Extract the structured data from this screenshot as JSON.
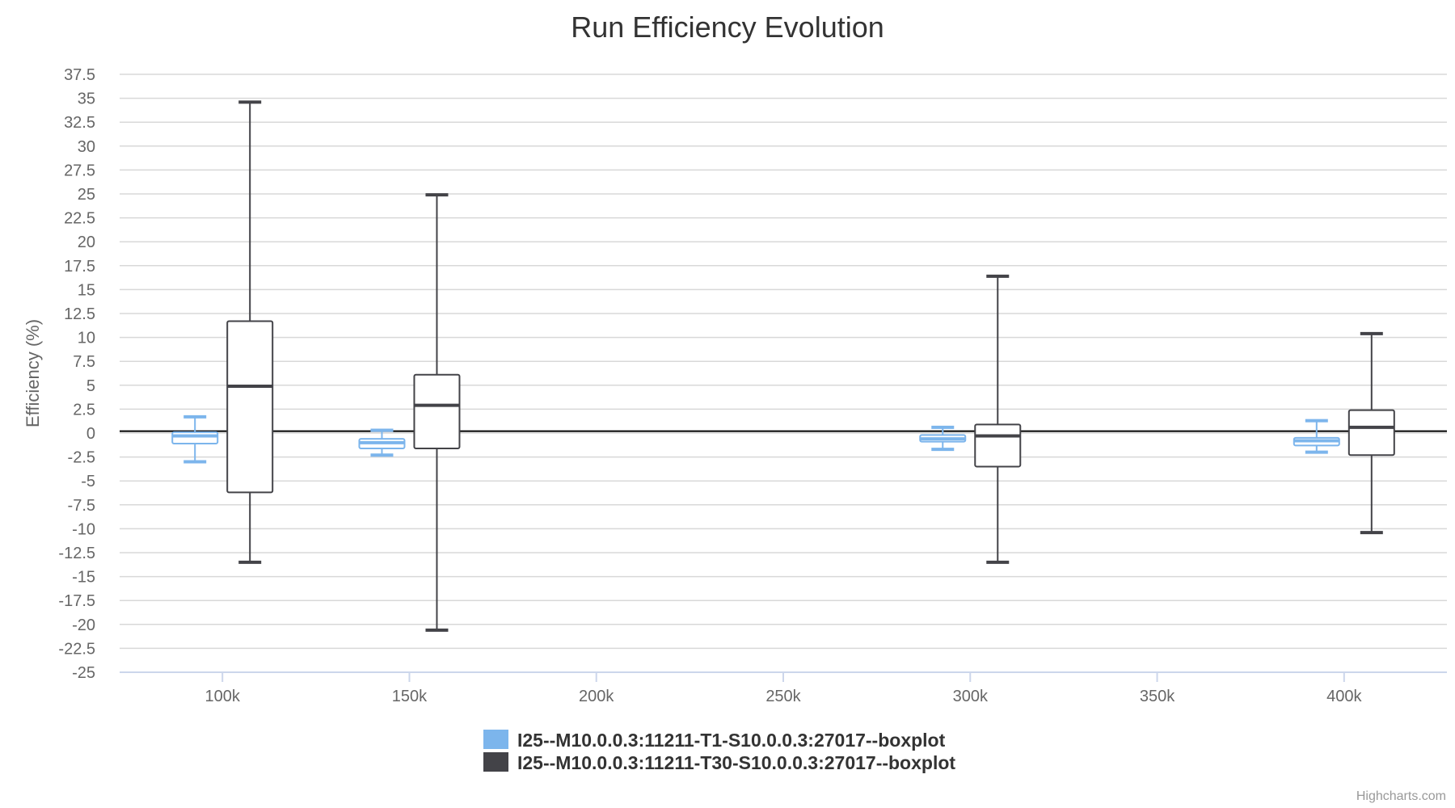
{
  "chart_data": {
    "type": "boxplot",
    "title": "Run Efficiency Evolution",
    "ylabel": "Efficiency (%)",
    "xlabel": "",
    "ylim": [
      -25,
      37.5
    ],
    "ytick_step": 2.5,
    "xlim": [
      72500,
      427500
    ],
    "xticks": [
      100000,
      150000,
      200000,
      250000,
      300000,
      350000,
      400000
    ],
    "xtick_labels": [
      "100k",
      "150k",
      "200k",
      "250k",
      "300k",
      "350k",
      "400k"
    ],
    "plot_line_y": 0.2,
    "legend_position": "bottom-center",
    "series": [
      {
        "name": "I25--M10.0.0.3:11211-T1-S10.0.0.3:27017--boxplot",
        "color": "#7cb5ec",
        "points": [
          {
            "x": 100000,
            "low": -3.0,
            "q1": -1.1,
            "median": -0.3,
            "q3": 0.1,
            "high": 1.7
          },
          {
            "x": 150000,
            "low": -2.3,
            "q1": -1.6,
            "median": -1.0,
            "q3": -0.6,
            "high": 0.3
          },
          {
            "x": 300000,
            "low": -1.7,
            "q1": -0.9,
            "median": -0.6,
            "q3": -0.2,
            "high": 0.6
          },
          {
            "x": 400000,
            "low": -2.0,
            "q1": -1.3,
            "median": -0.8,
            "q3": -0.5,
            "high": 1.3
          }
        ]
      },
      {
        "name": "I25--M10.0.0.3:11211-T30-S10.0.0.3:27017--boxplot",
        "color": "#434348",
        "points": [
          {
            "x": 100000,
            "low": -13.5,
            "q1": -6.2,
            "median": 4.9,
            "q3": 11.7,
            "high": 34.6
          },
          {
            "x": 150000,
            "low": -20.6,
            "q1": -1.6,
            "median": 2.9,
            "q3": 6.1,
            "high": 24.9
          },
          {
            "x": 300000,
            "low": -13.5,
            "q1": -3.5,
            "median": -0.3,
            "q3": 0.9,
            "high": 16.4
          },
          {
            "x": 400000,
            "low": -10.4,
            "q1": -2.3,
            "median": 0.6,
            "q3": 2.4,
            "high": 10.4
          }
        ]
      }
    ]
  },
  "credits": "Highcharts.com"
}
